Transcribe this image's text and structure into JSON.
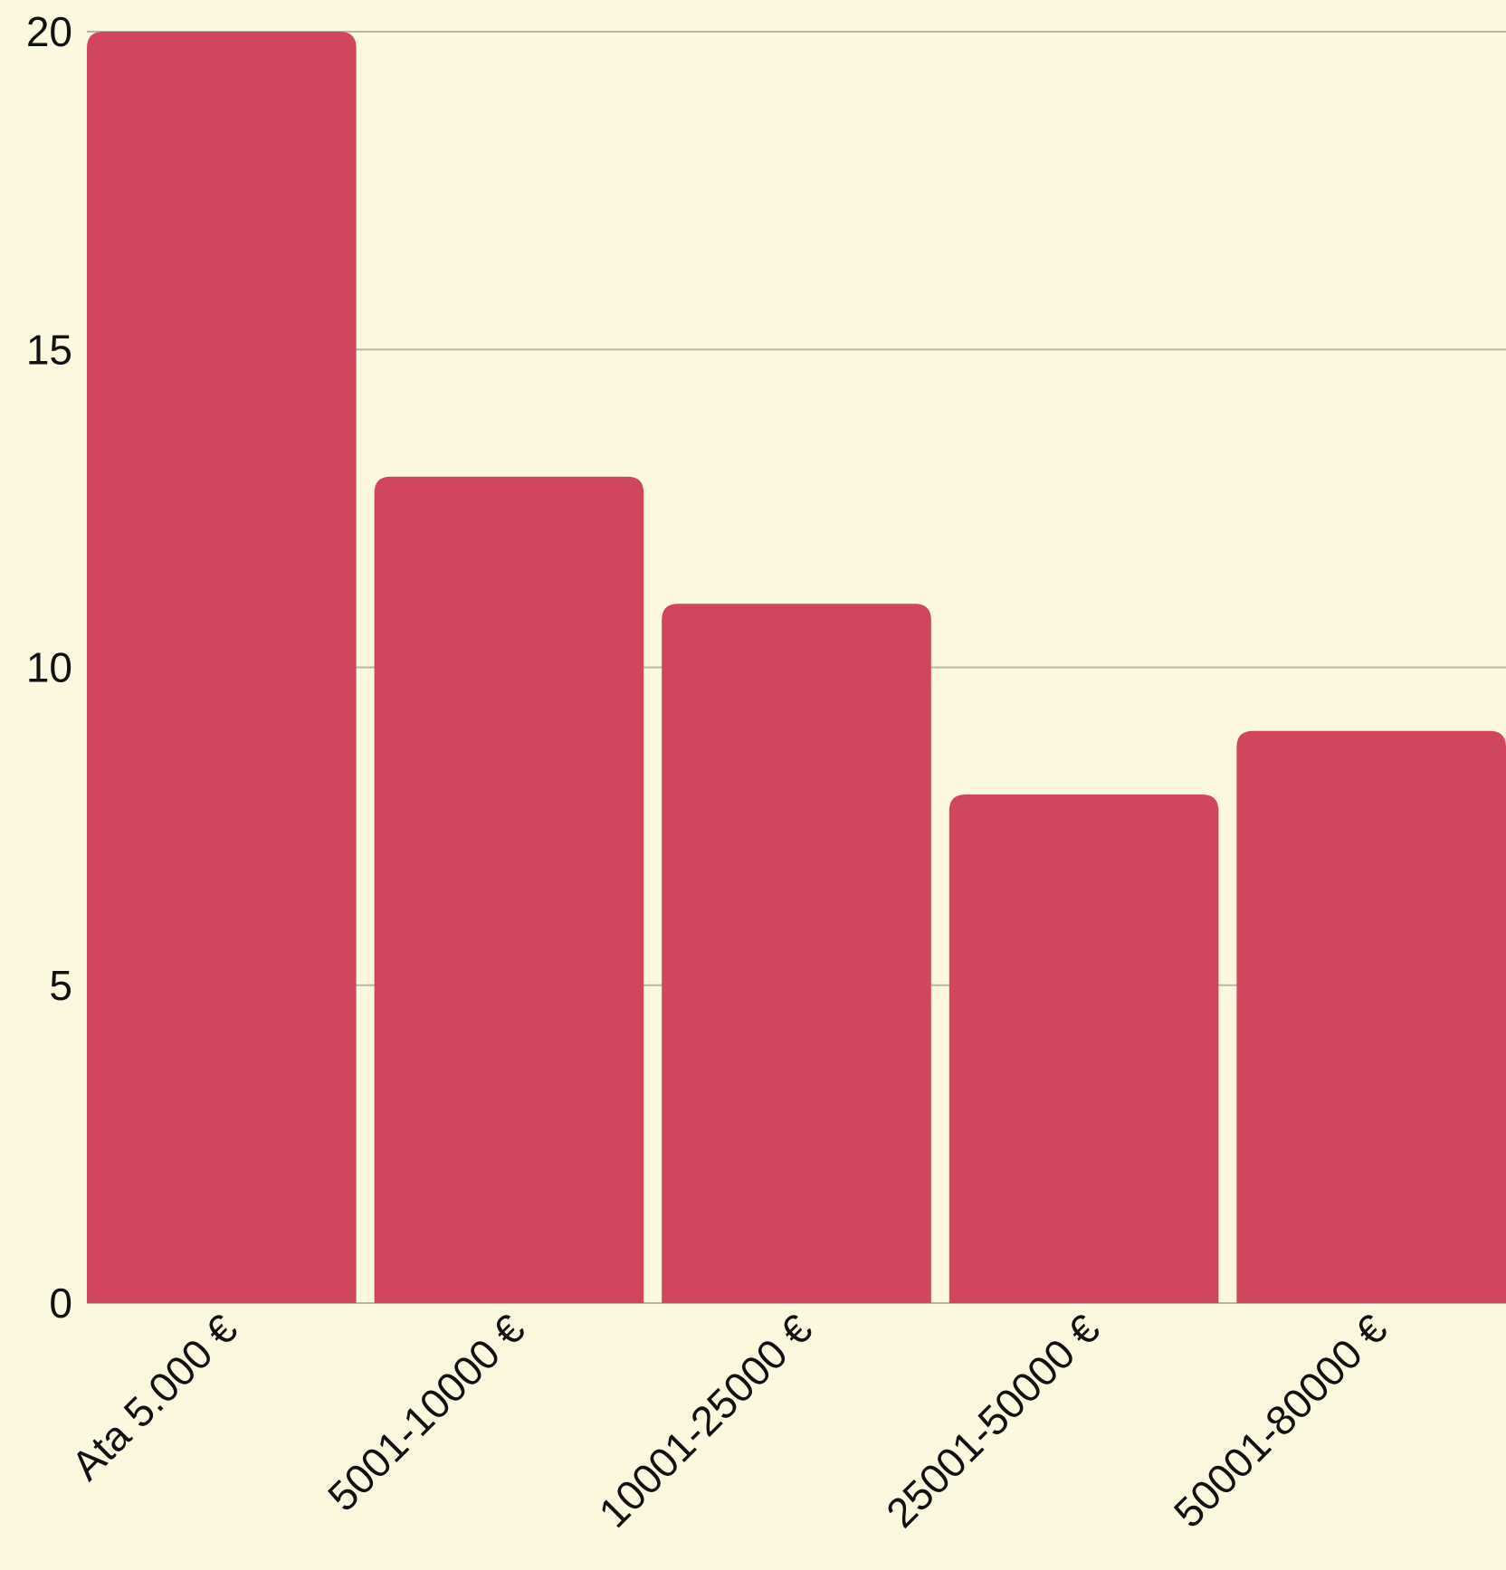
{
  "chart_data": {
    "type": "bar",
    "title": "",
    "xlabel": "",
    "ylabel": "",
    "categories": [
      "Ata 5.000 €",
      "5001-10000 €",
      "10001-25000 €",
      "25001-50000 €",
      "50001-80000 €"
    ],
    "values": [
      20,
      13,
      11,
      8,
      9
    ],
    "ylim": [
      0,
      20
    ],
    "yticks": [
      "0",
      "5",
      "10",
      "15",
      "20"
    ],
    "grid": true,
    "legend": "none",
    "colors": {
      "bar": "#d0465e",
      "background": "#fcf8e0",
      "grid": "#b5b8a5",
      "text": "#111111"
    }
  }
}
